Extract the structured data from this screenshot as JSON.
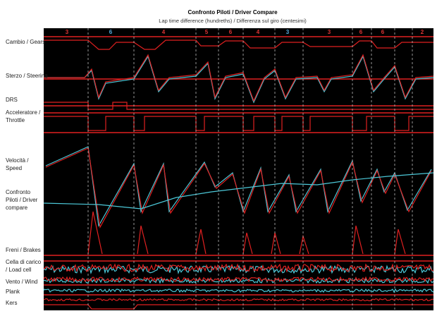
{
  "header": {
    "title": "Confronto Piloti / Driver Compare",
    "subtitle": "Lap time difference (hundreths) / Differenza sul giro (centesimi)"
  },
  "channels": [
    {
      "lines": [
        "Cambio / Gears"
      ]
    },
    {
      "lines": [
        "Sterzo / Steering"
      ]
    },
    {
      "lines": [
        "DRS"
      ]
    },
    {
      "lines": [
        "Acceleratore /",
        "Throttle"
      ]
    },
    {
      "lines": [
        "Velocità /",
        "Speed"
      ]
    },
    {
      "lines": [
        "Confronto",
        "Piloti / Driver",
        "compare"
      ]
    },
    {
      "lines": [
        "Freni / Brakes"
      ]
    },
    {
      "lines": [
        "Cella di carico",
        "/ Load cell"
      ]
    },
    {
      "lines": [
        "Vento / Wind"
      ]
    },
    {
      "lines": [
        "Plank"
      ]
    },
    {
      "lines": [
        "Kers"
      ]
    }
  ],
  "sectors": [
    "3",
    "6",
    "4",
    "5",
    "6",
    "4",
    "3",
    "3",
    "6",
    "6",
    "2"
  ]
}
